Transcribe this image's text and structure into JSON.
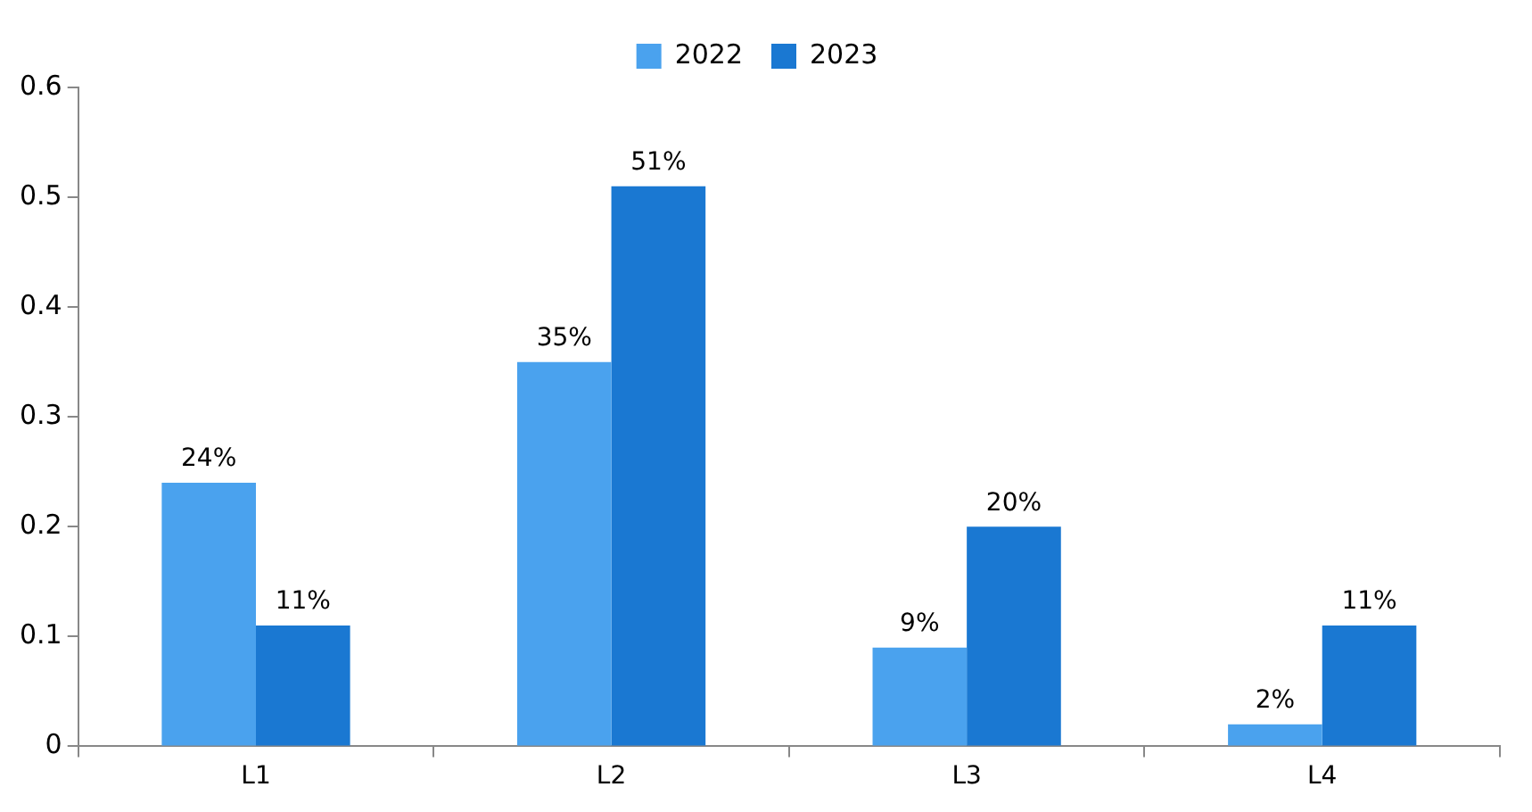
{
  "chart_data": {
    "type": "bar",
    "categories": [
      "L1",
      "L2",
      "L3",
      "L4"
    ],
    "series": [
      {
        "name": "2022",
        "color": "#4aa2ee",
        "values": [
          0.24,
          0.35,
          0.09,
          0.02
        ],
        "value_labels": [
          "24%",
          "35%",
          "9%",
          "2%"
        ]
      },
      {
        "name": "2023",
        "color": "#1a78d2",
        "values": [
          0.11,
          0.51,
          0.2,
          0.11
        ],
        "value_labels": [
          "11%",
          "51%",
          "20%",
          "11%"
        ]
      }
    ],
    "ylim": [
      0,
      0.6
    ],
    "yticks": [
      0,
      0.1,
      0.2,
      0.3,
      0.4,
      0.5,
      0.6
    ],
    "grid": false,
    "legend": "top"
  }
}
